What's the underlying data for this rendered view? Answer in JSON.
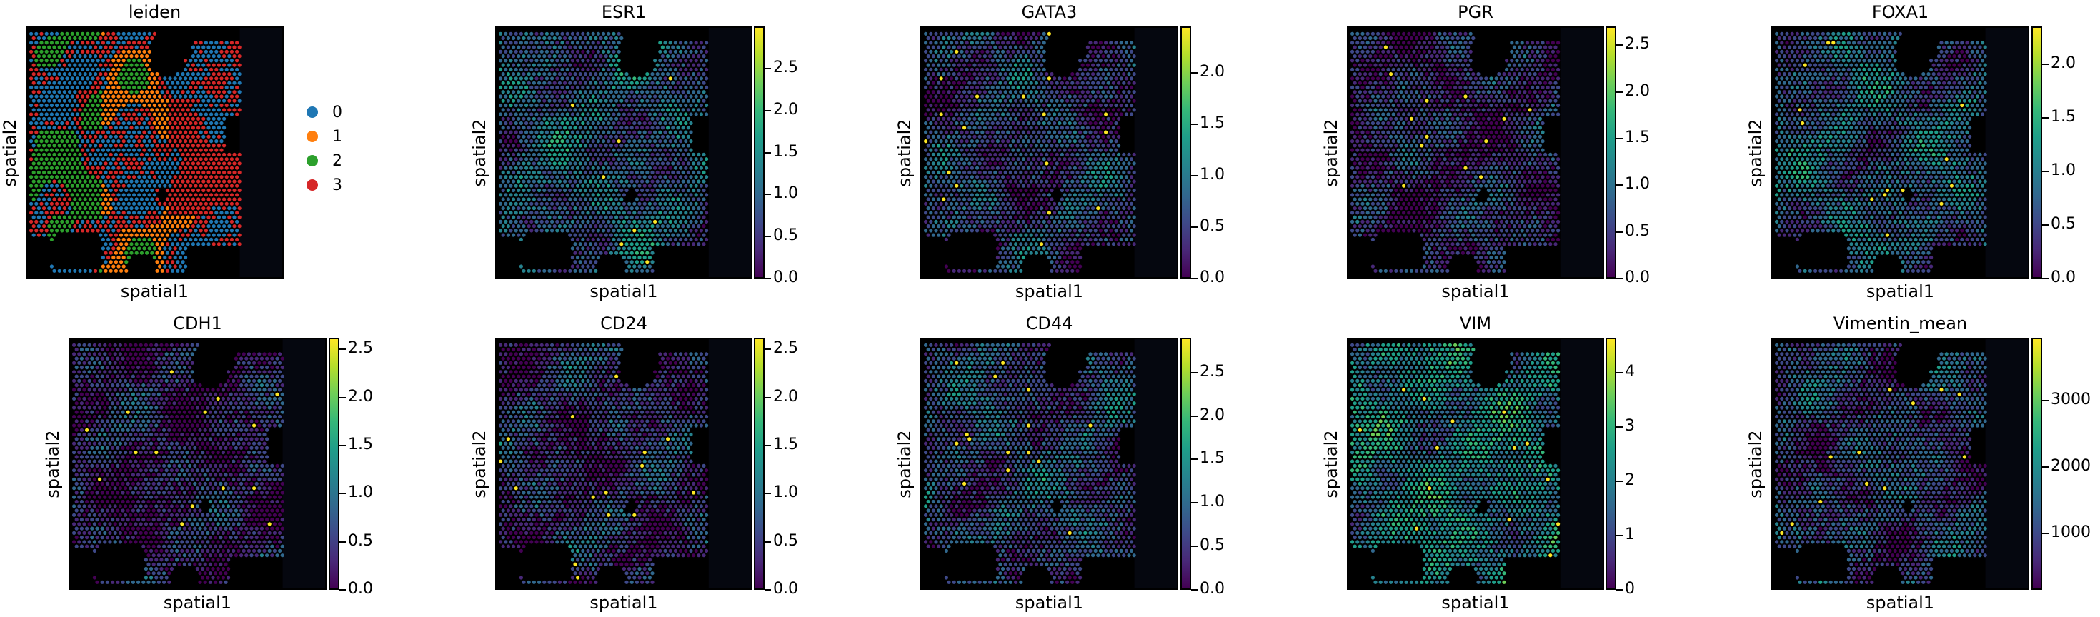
{
  "figure": {
    "type": "spatial_scatter_grid",
    "xlabel": "spatial1",
    "ylabel": "spatial2"
  },
  "chart_data": [
    {
      "type": "scatter",
      "title": "leiden",
      "kind": "categorical",
      "legend": [
        {
          "label": "0",
          "color": "#1f77b4"
        },
        {
          "label": "1",
          "color": "#ff7f0e"
        },
        {
          "label": "2",
          "color": "#2ca02c"
        },
        {
          "label": "3",
          "color": "#d62728"
        }
      ]
    },
    {
      "type": "scatter",
      "title": "ESR1",
      "kind": "continuous",
      "colormap": "viridis",
      "vmin": 0,
      "vmax": 3.0,
      "ticks": [
        "0.0",
        "0.5",
        "1.0",
        "1.5",
        "2.0",
        "2.5"
      ]
    },
    {
      "type": "scatter",
      "title": "GATA3",
      "kind": "continuous",
      "colormap": "viridis",
      "vmin": 0,
      "vmax": 2.45,
      "ticks": [
        "0.0",
        "0.5",
        "1.0",
        "1.5",
        "2.0"
      ]
    },
    {
      "type": "scatter",
      "title": "PGR",
      "kind": "continuous",
      "colormap": "viridis",
      "vmin": 0,
      "vmax": 2.7,
      "ticks": [
        "0.0",
        "0.5",
        "1.0",
        "1.5",
        "2.0",
        "2.5"
      ]
    },
    {
      "type": "scatter",
      "title": "FOXA1",
      "kind": "continuous",
      "colormap": "viridis",
      "vmin": 0,
      "vmax": 2.35,
      "ticks": [
        "0.0",
        "0.5",
        "1.0",
        "1.5",
        "2.0"
      ]
    },
    {
      "type": "scatter",
      "title": "CDH1",
      "kind": "continuous",
      "colormap": "viridis",
      "vmin": 0,
      "vmax": 2.62,
      "ticks": [
        "0.0",
        "0.5",
        "1.0",
        "1.5",
        "2.0",
        "2.5"
      ]
    },
    {
      "type": "scatter",
      "title": "CD24",
      "kind": "continuous",
      "colormap": "viridis",
      "vmin": 0,
      "vmax": 2.62,
      "ticks": [
        "0.0",
        "0.5",
        "1.0",
        "1.5",
        "2.0",
        "2.5"
      ]
    },
    {
      "type": "scatter",
      "title": "CD44",
      "kind": "continuous",
      "colormap": "viridis",
      "vmin": 0,
      "vmax": 2.9,
      "ticks": [
        "0.0",
        "0.5",
        "1.0",
        "1.5",
        "2.0",
        "2.5"
      ]
    },
    {
      "type": "scatter",
      "title": "VIM",
      "kind": "continuous",
      "colormap": "viridis",
      "vmin": 0,
      "vmax": 4.65,
      "ticks": [
        "0",
        "1",
        "2",
        "3",
        "4"
      ]
    },
    {
      "type": "scatter",
      "title": "Vimentin_mean",
      "kind": "continuous",
      "colormap": "viridis",
      "vmin": 150,
      "vmax": 3950,
      "ticks": [
        "1000",
        "2000",
        "3000"
      ]
    }
  ]
}
